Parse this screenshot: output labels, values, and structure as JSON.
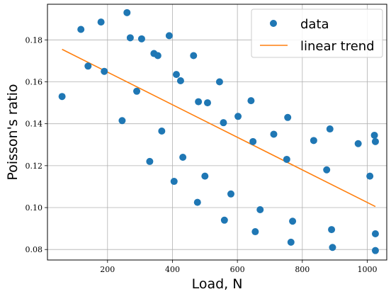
{
  "chart_data": {
    "type": "scatter",
    "xlabel": "Load, N",
    "ylabel": "Poisson's ratio",
    "xlim": [
      15,
      1060
    ],
    "ylim": [
      0.075,
      0.197
    ],
    "x_ticks": [
      200,
      400,
      600,
      800,
      1000
    ],
    "y_ticks": [
      0.08,
      0.1,
      0.12,
      0.14,
      0.16,
      0.18
    ],
    "x_tick_labels": [
      "200",
      "400",
      "600",
      "800",
      "1000"
    ],
    "y_tick_labels": [
      "0.08",
      "0.10",
      "0.12",
      "0.14",
      "0.16",
      "0.18"
    ],
    "grid": true,
    "legend_position": "top-right",
    "series": [
      {
        "name": "data",
        "kind": "scatter",
        "color": "#1f77b4",
        "points": [
          [
            60,
            0.153
          ],
          [
            118,
            0.185
          ],
          [
            140,
            0.1675
          ],
          [
            180,
            0.1885
          ],
          [
            190,
            0.165
          ],
          [
            245,
            0.1415
          ],
          [
            260,
            0.193
          ],
          [
            270,
            0.181
          ],
          [
            290,
            0.1555
          ],
          [
            305,
            0.1805
          ],
          [
            330,
            0.122
          ],
          [
            343,
            0.1735
          ],
          [
            355,
            0.1725
          ],
          [
            367,
            0.1365
          ],
          [
            390,
            0.182
          ],
          [
            405,
            0.1125
          ],
          [
            412,
            0.1635
          ],
          [
            425,
            0.1605
          ],
          [
            432,
            0.124
          ],
          [
            465,
            0.1725
          ],
          [
            477,
            0.1025
          ],
          [
            480,
            0.1505
          ],
          [
            500,
            0.115
          ],
          [
            508,
            0.15
          ],
          [
            545,
            0.16
          ],
          [
            557,
            0.1405
          ],
          [
            560,
            0.094
          ],
          [
            580,
            0.1065
          ],
          [
            602,
            0.1435
          ],
          [
            642,
            0.151
          ],
          [
            648,
            0.1315
          ],
          [
            655,
            0.0885
          ],
          [
            670,
            0.099
          ],
          [
            712,
            0.135
          ],
          [
            752,
            0.123
          ],
          [
            755,
            0.143
          ],
          [
            765,
            0.0835
          ],
          [
            770,
            0.0935
          ],
          [
            835,
            0.132
          ],
          [
            875,
            0.118
          ],
          [
            885,
            0.1375
          ],
          [
            890,
            0.0895
          ],
          [
            893,
            0.081
          ],
          [
            972,
            0.1305
          ],
          [
            1008,
            0.115
          ],
          [
            1022,
            0.1345
          ],
          [
            1025,
            0.1315
          ],
          [
            1025,
            0.0875
          ],
          [
            1025,
            0.0795
          ]
        ]
      },
      {
        "name": "linear trend",
        "kind": "line",
        "color": "#ff7f0e",
        "points": [
          [
            60,
            0.1755
          ],
          [
            1025,
            0.1005
          ]
        ]
      }
    ]
  }
}
